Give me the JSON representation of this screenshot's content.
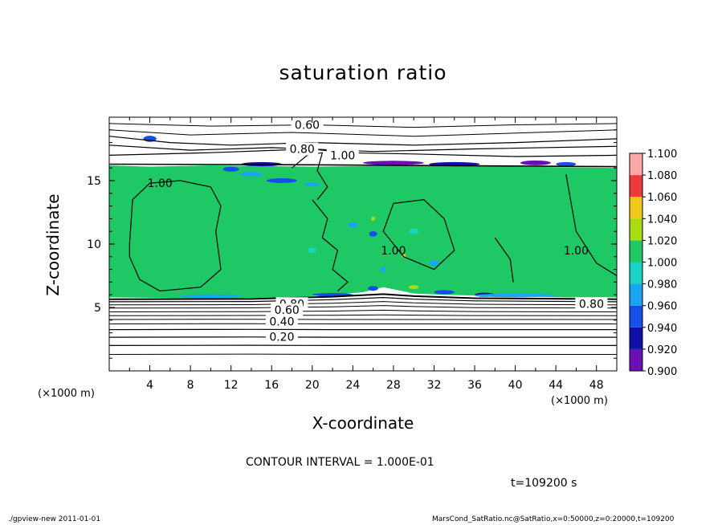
{
  "chart_data": {
    "type": "heatmap",
    "title": "saturation ratio",
    "xlabel": "X-coordinate",
    "ylabel": "Z-coordinate",
    "x_unit_left": "(×1000 m)",
    "x_unit_right": "(×1000 m)",
    "xlim": [
      0,
      50
    ],
    "ylim": [
      0,
      20
    ],
    "x_ticks": [
      4,
      8,
      12,
      16,
      20,
      24,
      28,
      32,
      36,
      40,
      44,
      48
    ],
    "y_ticks": [
      5,
      10,
      15
    ],
    "colorbar": {
      "levels": [
        "0.900",
        "0.920",
        "0.940",
        "0.960",
        "0.980",
        "1.000",
        "1.020",
        "1.040",
        "1.060",
        "1.080",
        "1.100"
      ],
      "colors": [
        "#6a0fb3",
        "#1010a8",
        "#1450e6",
        "#1aa4f4",
        "#18d2c4",
        "#1ec864",
        "#37d61e",
        "#a6dc10",
        "#f0c81a",
        "#ff6a1a",
        "#f03a3a",
        "#f87a7a",
        "#fca8a8"
      ]
    },
    "contour_labels": [
      {
        "text": "0.60",
        "x": 19.5,
        "y": 19.4
      },
      {
        "text": "0.80",
        "x": 19.0,
        "y": 17.5
      },
      {
        "text": "1.00",
        "x": 23.0,
        "y": 17.0
      },
      {
        "text": "1.00",
        "x": 5.0,
        "y": 14.8
      },
      {
        "text": "1.00",
        "x": 28.0,
        "y": 9.5
      },
      {
        "text": "1.00",
        "x": 46.0,
        "y": 9.5
      },
      {
        "text": "0.80",
        "x": 18.0,
        "y": 5.3
      },
      {
        "text": "0.80",
        "x": 47.5,
        "y": 5.3
      },
      {
        "text": "0.60",
        "x": 17.5,
        "y": 4.8
      },
      {
        "text": "0.40",
        "x": 17.0,
        "y": 3.9
      },
      {
        "text": "0.20",
        "x": 17.0,
        "y": 2.7
      }
    ],
    "contour_interval_text": "CONTOUR INTERVAL = 1.000E-01",
    "time_text": "t=109200 s"
  },
  "footer": {
    "left": "./gpview-new   2011-01-01",
    "right": "MarsCond_SatRatio.nc@SatRatio,x=0:50000,z=0:20000,t=109200"
  }
}
